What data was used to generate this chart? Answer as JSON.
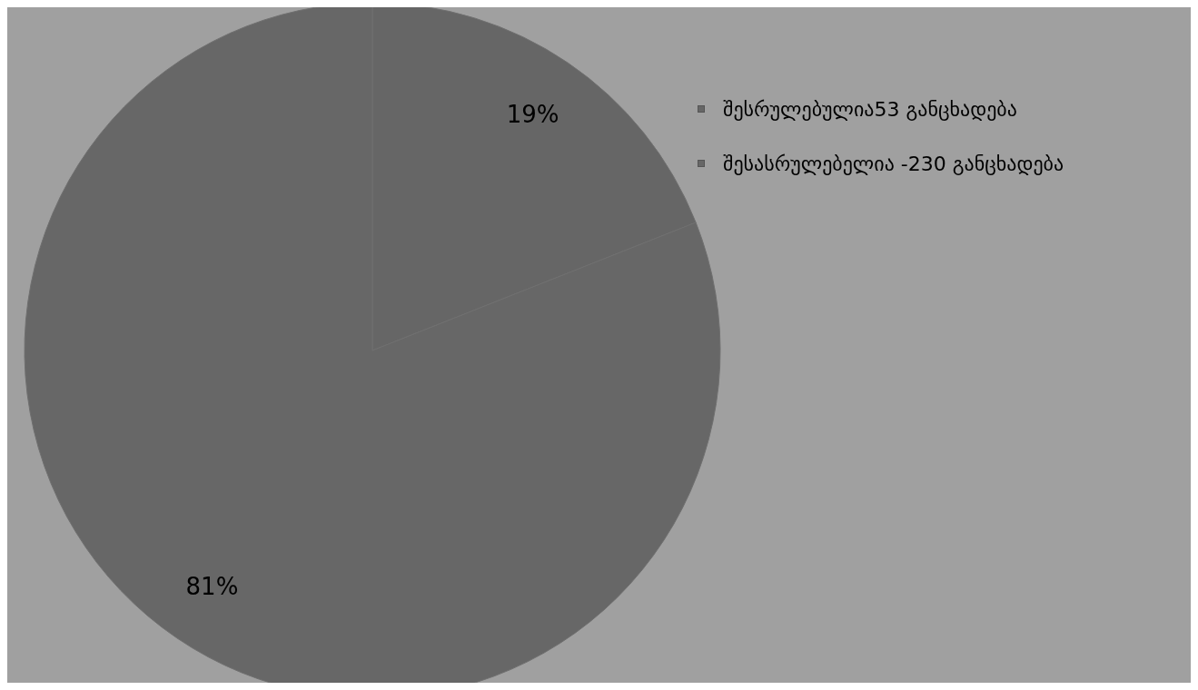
{
  "chart_data": {
    "type": "pie",
    "categories": [
      "შესრულებულია53 განცხადება",
      "შესასრულებელია -230 განცხადება"
    ],
    "values": [
      19,
      81
    ],
    "colors": [
      "#666666",
      "#676767"
    ],
    "value_labels": [
      "19%",
      "81%"
    ],
    "legend": "top right"
  }
}
